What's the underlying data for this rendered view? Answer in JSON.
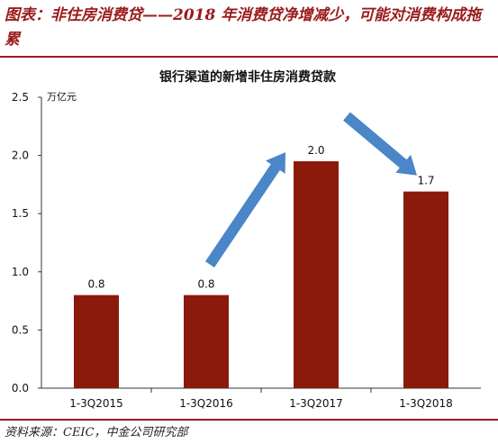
{
  "figure": {
    "title": "图表：非住房消费贷——2018 年消费贷净增减少，可能对消费构成拖累",
    "source": "资料来源：CEIC，中金公司研究部"
  },
  "chart_data": {
    "type": "bar",
    "title": "银行渠道的新增非住房消费贷款",
    "unit_label": "万亿元",
    "categories": [
      "1-3Q2015",
      "1-3Q2016",
      "1-3Q2017",
      "1-3Q2018"
    ],
    "values": [
      0.8,
      0.8,
      1.95,
      1.69
    ],
    "data_labels": [
      "0.8",
      "0.8",
      "2.0",
      "1.7"
    ],
    "ylim": [
      0,
      2.5
    ],
    "yticks": [
      "0.0",
      "0.5",
      "1.0",
      "1.5",
      "2.0",
      "2.5"
    ],
    "bar_color": "#8b1a0a",
    "arrow_color": "#4a86c8",
    "grid": false,
    "annotations": [
      "arrow-up",
      "arrow-down"
    ]
  }
}
